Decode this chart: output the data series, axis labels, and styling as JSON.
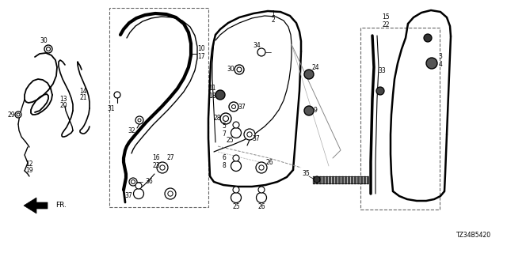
{
  "bg_color": "#ffffff",
  "diagram_code": "TZ34B5420",
  "line_color": "#000000",
  "dashed_box_color": "#666666"
}
